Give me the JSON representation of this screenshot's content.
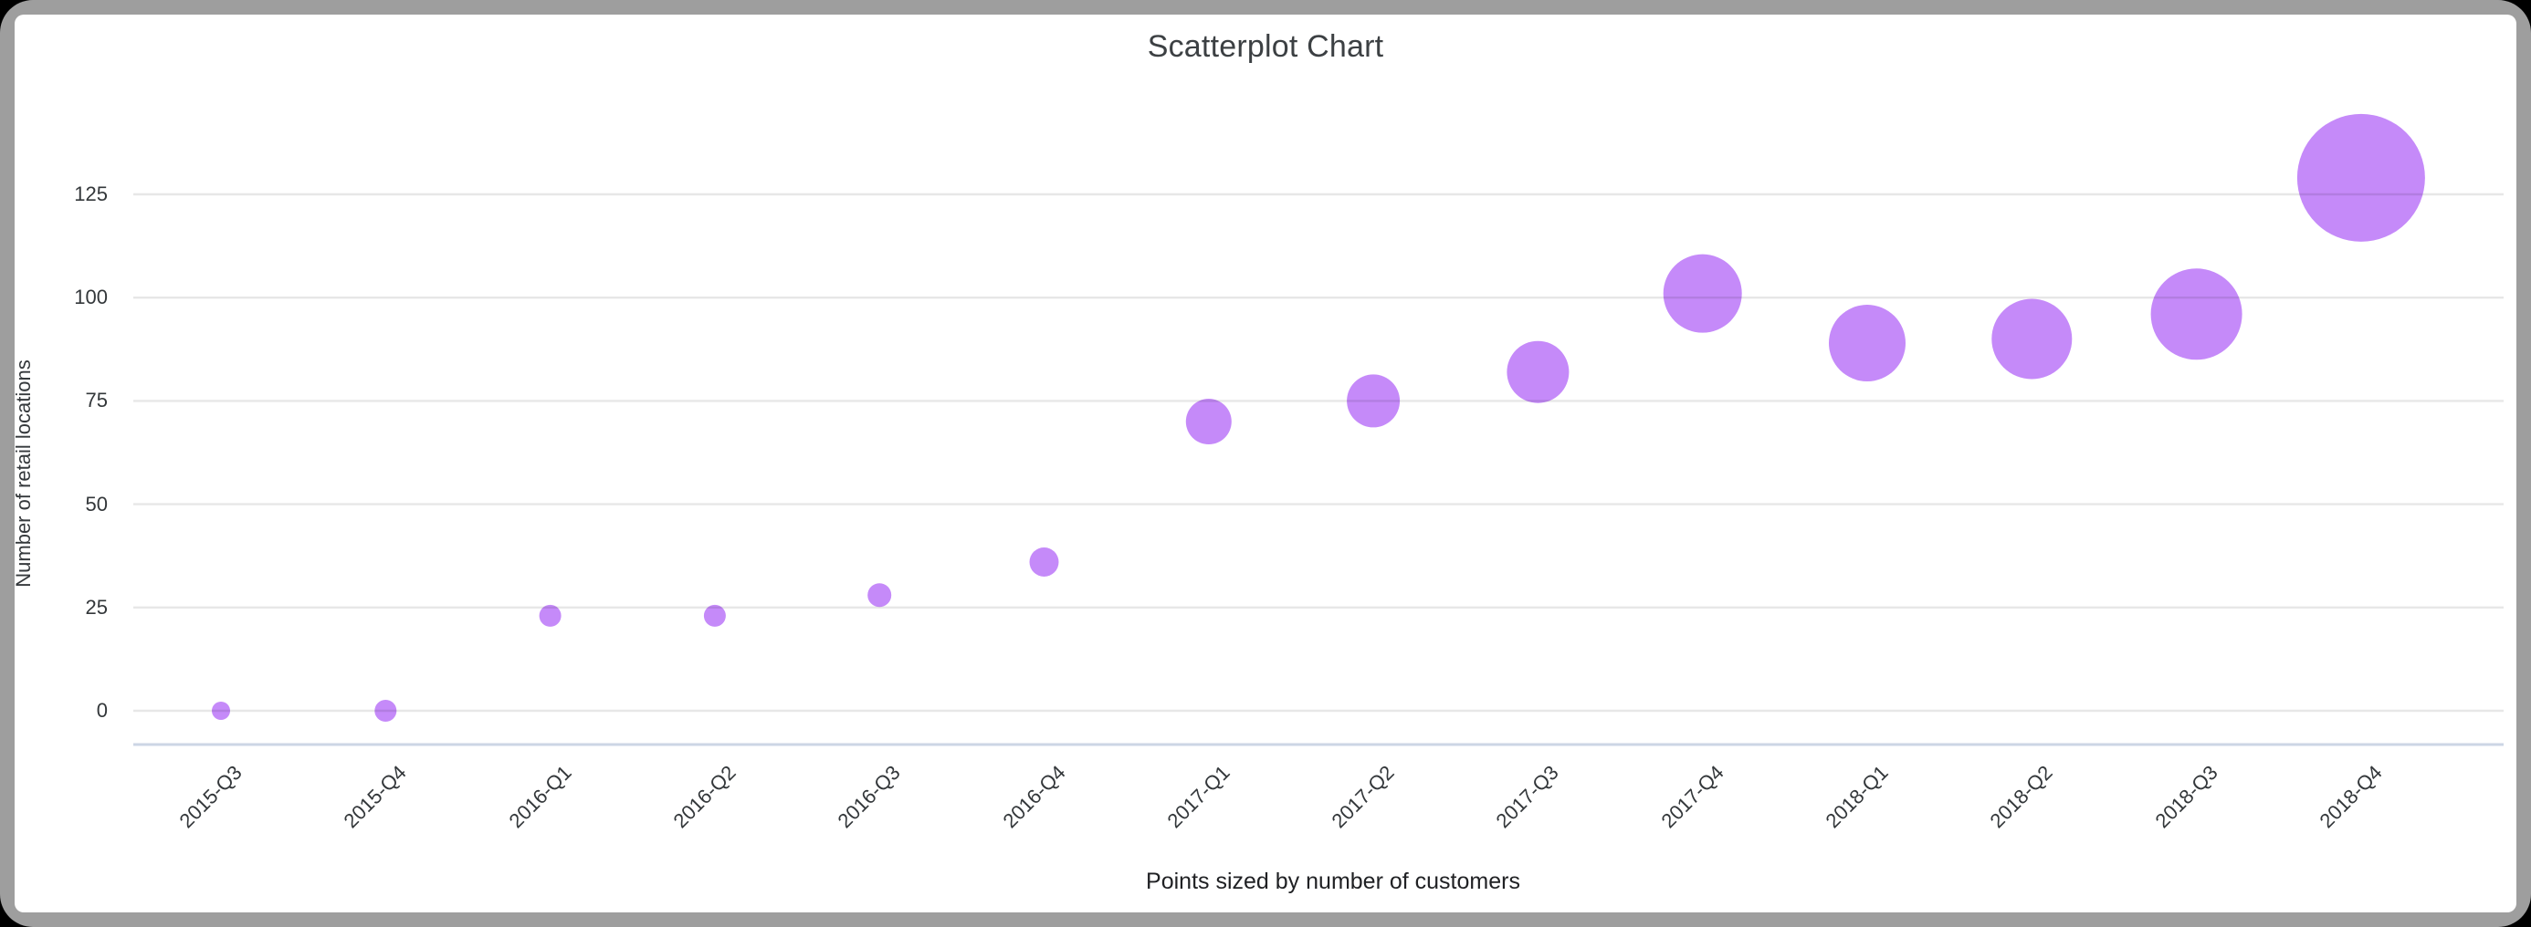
{
  "frame": {
    "outer_background": "#000000",
    "border_color": "#9e9e9e",
    "card_background": "#ffffff"
  },
  "chart_data": {
    "type": "scatter",
    "title": "Scatterplot Chart",
    "ylabel": "Number of retail locations",
    "caption": "Points sized by number of customers",
    "categories": [
      "2015-Q3",
      "2015-Q4",
      "2016-Q1",
      "2016-Q2",
      "2016-Q3",
      "2016-Q4",
      "2017-Q1",
      "2017-Q2",
      "2017-Q3",
      "2017-Q4",
      "2018-Q1",
      "2018-Q2",
      "2018-Q3",
      "2018-Q4"
    ],
    "series": [
      {
        "name": "Number of retail locations",
        "values": [
          0,
          0,
          23,
          23,
          28,
          36,
          70,
          75,
          82,
          101,
          89,
          90,
          96,
          129
        ],
        "point_radius_px": [
          10,
          12,
          12,
          12,
          13,
          16,
          25,
          29,
          34,
          43,
          42,
          44,
          50,
          70
        ]
      }
    ],
    "yticks": [
      0,
      25,
      50,
      75,
      100,
      125
    ],
    "ylim": [
      0,
      140
    ],
    "grid": true,
    "legend": "none",
    "point_color": "#c58af9",
    "point_overlap_line_visible": true,
    "gridline_color": "#e7e7e7",
    "baseline_color": "#ccd6e5",
    "title_color": "#3c4043",
    "tick_color": "#33373a"
  }
}
